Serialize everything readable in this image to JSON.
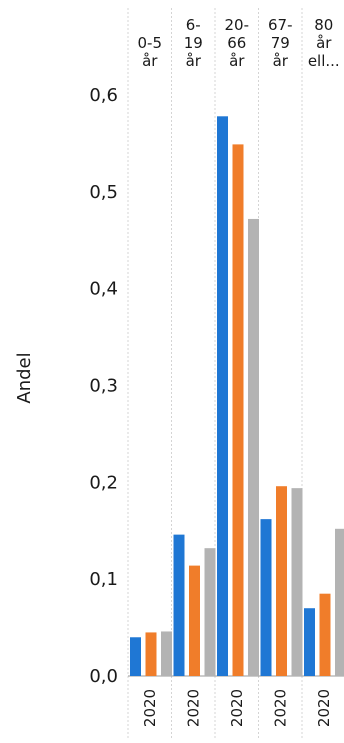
{
  "chart_data": {
    "type": "bar",
    "ylabel": "Andel",
    "ylim": [
      0,
      0.6
    ],
    "yticks": [
      "0,0",
      "0,1",
      "0,2",
      "0,3",
      "0,4",
      "0,5",
      "0,6"
    ],
    "yticks_values": [
      0,
      0.1,
      0.2,
      0.3,
      0.4,
      0.5,
      0.6
    ],
    "grid": false,
    "panels": [
      {
        "header": [
          "",
          "0-5",
          "år"
        ],
        "x_label": "2020"
      },
      {
        "header": [
          "6-",
          "19",
          "år"
        ],
        "x_label": "2020"
      },
      {
        "header": [
          "20-",
          "66",
          "år"
        ],
        "x_label": "2020"
      },
      {
        "header": [
          "67-",
          "79",
          "år"
        ],
        "x_label": "2020"
      },
      {
        "header": [
          "80",
          "år",
          "ell..."
        ],
        "x_label": "2020"
      }
    ],
    "series": [
      {
        "color": "#1f77d4",
        "values": [
          0.04,
          0.146,
          0.578,
          0.162,
          0.07
        ]
      },
      {
        "color": "#f07d2a",
        "values": [
          0.045,
          0.114,
          0.549,
          0.196,
          0.085
        ]
      },
      {
        "color": "#b3b3b3",
        "values": [
          0.046,
          0.132,
          0.472,
          0.194,
          0.152
        ]
      }
    ]
  }
}
